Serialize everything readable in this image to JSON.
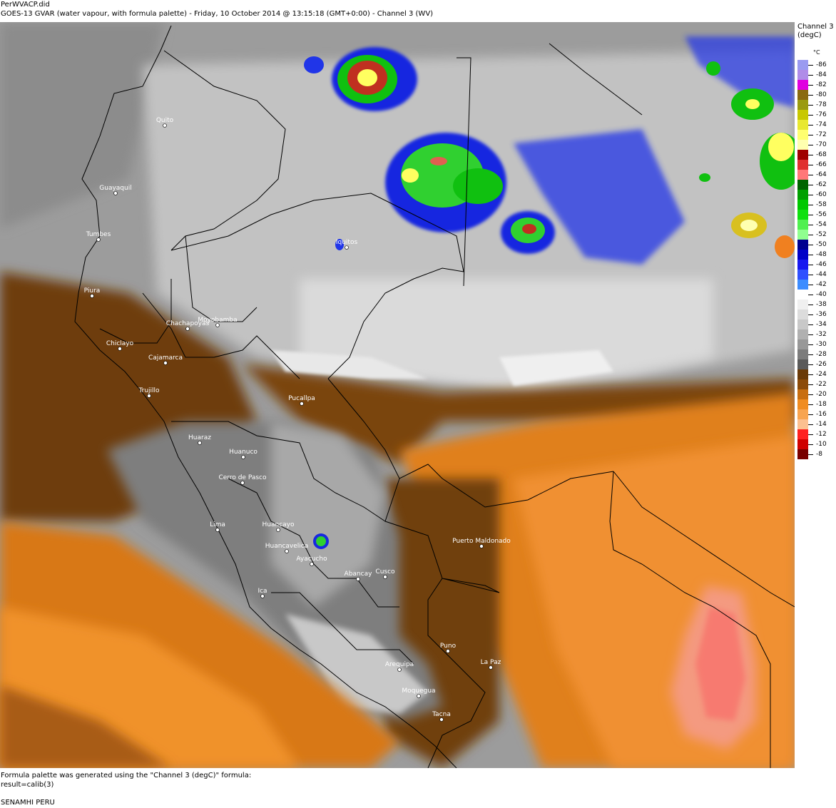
{
  "header": {
    "file": "PerWVACP.did",
    "subtitle": "GOES-13 GVAR (water vapour, with formula palette) - Friday, 10 October 2014 @ 13:15:18 (GMT+0:00) - Channel 3 (WV)"
  },
  "legend": {
    "title_line1": "Channel 3",
    "title_line2": "(degC)",
    "unit": "°C",
    "entries": [
      {
        "value": "-86",
        "color": "#9a9af0"
      },
      {
        "value": "-84",
        "color": "#b08ce8"
      },
      {
        "value": "-82",
        "color": "#e000e0"
      },
      {
        "value": "-80",
        "color": "#8a6a10"
      },
      {
        "value": "-78",
        "color": "#9a9a10"
      },
      {
        "value": "-76",
        "color": "#c8c800"
      },
      {
        "value": "-74",
        "color": "#e8e830"
      },
      {
        "value": "-72",
        "color": "#ffff70"
      },
      {
        "value": "-70",
        "color": "#ffffb0"
      },
      {
        "value": "-68",
        "color": "#a00000"
      },
      {
        "value": "-66",
        "color": "#e03030"
      },
      {
        "value": "-64",
        "color": "#ff7878"
      },
      {
        "value": "-62",
        "color": "#006400"
      },
      {
        "value": "-60",
        "color": "#00a000"
      },
      {
        "value": "-58",
        "color": "#00c800"
      },
      {
        "value": "-56",
        "color": "#10e010"
      },
      {
        "value": "-54",
        "color": "#50f050"
      },
      {
        "value": "-52",
        "color": "#90ff90"
      },
      {
        "value": "-50",
        "color": "#000090"
      },
      {
        "value": "-48",
        "color": "#0000c8"
      },
      {
        "value": "-46",
        "color": "#1818f0"
      },
      {
        "value": "-44",
        "color": "#3050ff"
      },
      {
        "value": "-42",
        "color": "#3c8cff"
      },
      {
        "value": "-40",
        "color": "#ffffff"
      },
      {
        "value": "-38",
        "color": "#f0f0f0"
      },
      {
        "value": "-36",
        "color": "#dcdcdc"
      },
      {
        "value": "-34",
        "color": "#c8c8c8"
      },
      {
        "value": "-32",
        "color": "#b0b0b0"
      },
      {
        "value": "-30",
        "color": "#989898"
      },
      {
        "value": "-28",
        "color": "#7c7c7c"
      },
      {
        "value": "-26",
        "color": "#5a5a5a"
      },
      {
        "value": "-24",
        "color": "#6a3a08"
      },
      {
        "value": "-22",
        "color": "#8c4a08"
      },
      {
        "value": "-20",
        "color": "#c86e10"
      },
      {
        "value": "-18",
        "color": "#f08c20"
      },
      {
        "value": "-16",
        "color": "#f8a450"
      },
      {
        "value": "-14",
        "color": "#fcc090"
      },
      {
        "value": "-12",
        "color": "#ff2020"
      },
      {
        "value": "-10",
        "color": "#d00000"
      },
      {
        "value": "-8",
        "color": "#780000"
      }
    ]
  },
  "cities": [
    {
      "name": "Quito"
    },
    {
      "name": "Guayaquil"
    },
    {
      "name": "Tumbes"
    },
    {
      "name": "Iquitos"
    },
    {
      "name": "Piura"
    },
    {
      "name": "Moyobamba"
    },
    {
      "name": "Chachapoyas"
    },
    {
      "name": "Chiclayo"
    },
    {
      "name": "Cajamarca"
    },
    {
      "name": "Trujillo"
    },
    {
      "name": "Pucallpa"
    },
    {
      "name": "Huaraz"
    },
    {
      "name": "Huanuco"
    },
    {
      "name": "Cerro de Pasco"
    },
    {
      "name": "Huancayo"
    },
    {
      "name": "Lima"
    },
    {
      "name": "Huancavelica"
    },
    {
      "name": "Ayacucho"
    },
    {
      "name": "Puerto Maldonado"
    },
    {
      "name": "Cusco"
    },
    {
      "name": "Abancay"
    },
    {
      "name": "Ica"
    },
    {
      "name": "Puno"
    },
    {
      "name": "La Paz"
    },
    {
      "name": "Arequipa"
    },
    {
      "name": "Moquegua"
    },
    {
      "name": "Tacna"
    }
  ],
  "footer": {
    "line1": "Formula palette was generated using the \"Channel 3 (degC)\" formula:",
    "line2": "result=calib(3)",
    "line3": "SENAMHI PERU"
  }
}
